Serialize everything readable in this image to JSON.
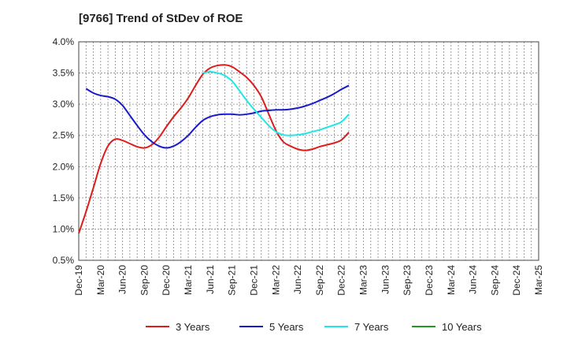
{
  "chart_data": {
    "type": "line",
    "title": "[9766]  Trend of StDev of ROE",
    "xlabel": "",
    "ylabel": "",
    "ylim": [
      0.5,
      4.0
    ],
    "y_ticks": [
      "0.5%",
      "1.0%",
      "1.5%",
      "2.0%",
      "2.5%",
      "3.0%",
      "3.5%",
      "4.0%"
    ],
    "y_tick_values": [
      0.5,
      1.0,
      1.5,
      2.0,
      2.5,
      3.0,
      3.5,
      4.0
    ],
    "x_ticks": [
      "Dec-19",
      "Mar-20",
      "Jun-20",
      "Sep-20",
      "Dec-20",
      "Mar-21",
      "Jun-21",
      "Sep-21",
      "Dec-21",
      "Mar-22",
      "Jun-22",
      "Sep-22",
      "Dec-22",
      "Mar-23",
      "Jun-23",
      "Sep-23",
      "Dec-23",
      "Mar-24",
      "Jun-24",
      "Sep-24",
      "Dec-24",
      "Mar-25"
    ],
    "grid": true,
    "legend_position": "bottom",
    "series": [
      {
        "name": "3 Years",
        "color": "#dd1c1c",
        "values": [
          0.93,
          1.28,
          1.66,
          2.05,
          2.33,
          2.44,
          2.42,
          2.37,
          2.32,
          2.3,
          2.35,
          2.47,
          2.64,
          2.8,
          2.94,
          3.1,
          3.3,
          3.48,
          3.58,
          3.62,
          3.63,
          3.6,
          3.52,
          3.43,
          3.3,
          3.12,
          2.85,
          2.58,
          2.4,
          2.33,
          2.28,
          2.26,
          2.28,
          2.32,
          2.35,
          2.38,
          2.43,
          2.55
        ]
      },
      {
        "name": "5 Years",
        "color": "#1a1acc",
        "values": [
          null,
          3.25,
          3.18,
          3.14,
          3.12,
          3.08,
          2.98,
          2.82,
          2.66,
          2.51,
          2.4,
          2.33,
          2.3,
          2.33,
          2.4,
          2.5,
          2.63,
          2.74,
          2.8,
          2.83,
          2.84,
          2.84,
          2.83,
          2.84,
          2.86,
          2.89,
          2.9,
          2.91,
          2.91,
          2.92,
          2.94,
          2.97,
          3.01,
          3.06,
          3.11,
          3.17,
          3.24,
          3.3
        ]
      },
      {
        "name": "7 Years",
        "color": "#22e6e6",
        "values": [
          null,
          null,
          null,
          null,
          null,
          null,
          null,
          null,
          null,
          null,
          null,
          null,
          null,
          null,
          null,
          null,
          null,
          3.5,
          3.52,
          3.5,
          3.46,
          3.37,
          3.22,
          3.06,
          2.92,
          2.79,
          2.66,
          2.56,
          2.51,
          2.5,
          2.51,
          2.53,
          2.56,
          2.59,
          2.63,
          2.67,
          2.72,
          2.84
        ]
      },
      {
        "name": "10 Years",
        "color": "#229922",
        "values": []
      }
    ]
  }
}
